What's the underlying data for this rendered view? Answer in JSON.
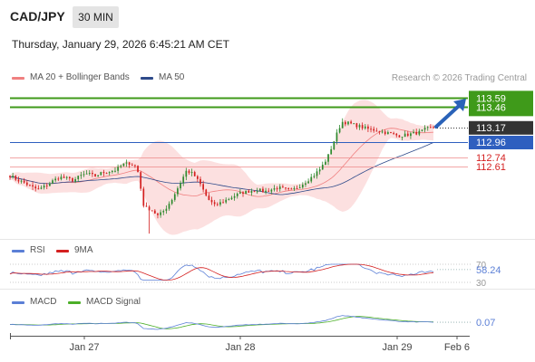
{
  "header": {
    "pair": "CAD/JPY",
    "timeframe": "30 MIN",
    "datetime": "Thursday, January 29, 2026 6:45:21 AM CET"
  },
  "legend_main": {
    "ma20_label": "MA 20 + Bollinger Bands",
    "ma50_label": "MA 50",
    "credit": "Research © 2026 Trading Central"
  },
  "legend_rsi": {
    "rsi_label": "RSI",
    "ma9_label": "9MA"
  },
  "legend_macd": {
    "macd_label": "MACD",
    "signal_label": "MACD Signal"
  },
  "colors": {
    "up": "#2f8a2f",
    "down": "#d42020",
    "resistance": "#3f9a1a",
    "support_line": "#2f5fbf",
    "support_price": "#d42020",
    "band_fill": "#fbd6d6",
    "ma20": "#f08080",
    "ma50": "#2e4a8a",
    "rsi": "#5b7fd6",
    "rsi_ma": "#d42020",
    "macd": "#5b7fd6",
    "macd_signal": "#4caf28",
    "arrow": "#2a62b8"
  },
  "chart_data": [
    {
      "type": "candlestick",
      "title": "CAD/JPY 30 MIN",
      "xlabel": "",
      "ylabel": "",
      "ylim": [
        111.6,
        113.75
      ],
      "x_ticks": [
        "Jan 27",
        "Jan 28",
        "Jan 29",
        "Feb 6"
      ],
      "price_levels": [
        {
          "label": "113.59",
          "value": 113.59,
          "kind": "resistance"
        },
        {
          "label": "113.46",
          "value": 113.46,
          "kind": "resistance"
        },
        {
          "label": "113.17",
          "value": 113.17,
          "kind": "last_price"
        },
        {
          "label": "112.96",
          "value": 112.96,
          "kind": "support_line"
        },
        {
          "label": "112.74",
          "value": 112.74,
          "kind": "support"
        },
        {
          "label": "112.61",
          "value": 112.61,
          "kind": "support"
        }
      ],
      "series": [
        {
          "name": "MA 20 + Bollinger Bands"
        },
        {
          "name": "MA 50"
        }
      ],
      "close_path": [
        112.48,
        112.42,
        112.38,
        112.32,
        112.28,
        112.33,
        112.4,
        112.46,
        112.44,
        112.41,
        112.48,
        112.51,
        112.47,
        112.52,
        112.54,
        112.56,
        112.64,
        112.66,
        112.6,
        112.02,
        112.0,
        111.9,
        112.0,
        112.15,
        112.35,
        112.55,
        112.5,
        112.35,
        112.15,
        112.05,
        112.1,
        112.15,
        112.2,
        112.24,
        112.26,
        112.28,
        112.25,
        112.28,
        112.31,
        112.28,
        112.27,
        112.33,
        112.4,
        112.48,
        112.58,
        112.74,
        113.0,
        113.25,
        113.23,
        113.2,
        113.17,
        113.14,
        113.13,
        113.1,
        113.08,
        113.05,
        113.06,
        113.08,
        113.1,
        113.15,
        113.17
      ]
    },
    {
      "type": "line",
      "title": "RSI",
      "ylim": [
        20,
        80
      ],
      "y_ticks": [
        30,
        70
      ],
      "last_value": "58.24",
      "series": [
        {
          "name": "RSI"
        },
        {
          "name": "9MA"
        }
      ]
    },
    {
      "type": "line",
      "title": "MACD",
      "last_value": "0.07",
      "series": [
        {
          "name": "MACD"
        },
        {
          "name": "MACD Signal"
        }
      ]
    }
  ]
}
